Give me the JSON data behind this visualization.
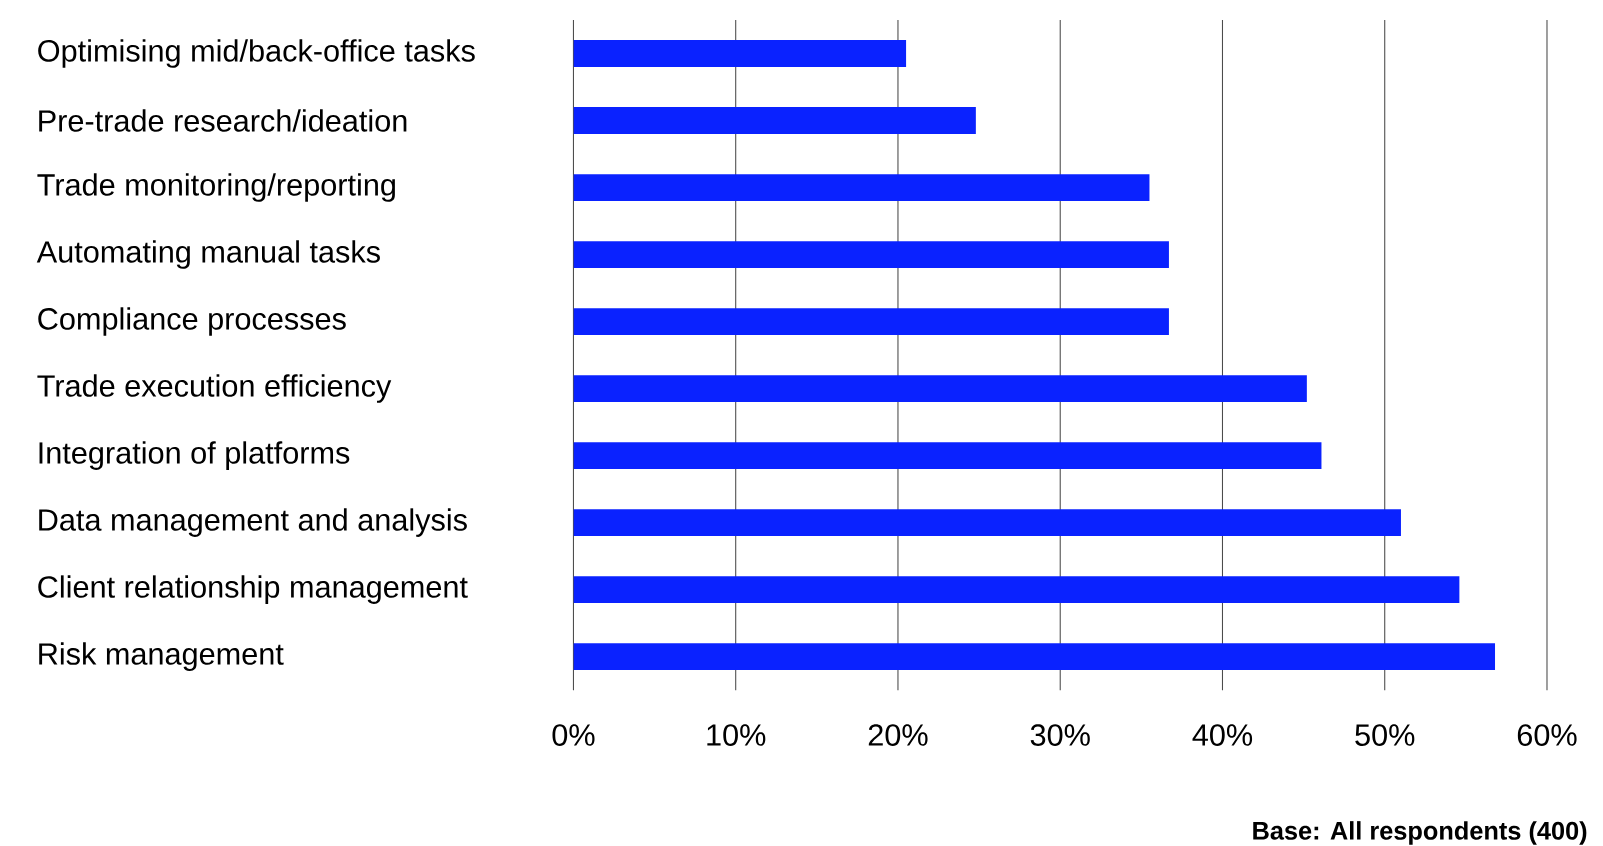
{
  "chart_data": {
    "type": "bar",
    "orientation": "horizontal",
    "categories": [
      "Optimising mid/back-office tasks",
      "Pre-trade research/ideation",
      "Trade monitoring/reporting",
      "Automating manual tasks",
      "Compliance processes",
      "Trade execution efficiency",
      "Integration of platforms",
      "Data management and analysis",
      "Client relationship management",
      "Risk management"
    ],
    "values": [
      20.5,
      24.8,
      35.5,
      36.7,
      36.7,
      45.2,
      46.1,
      51.0,
      54.6,
      56.8
    ],
    "color": "#0a22ff",
    "xlim": [
      0,
      60
    ],
    "xticks": [
      {
        "value": 0,
        "label": "0%"
      },
      {
        "value": 10,
        "label": "10%"
      },
      {
        "value": 20,
        "label": "20%"
      },
      {
        "value": 30,
        "label": "30%"
      },
      {
        "value": 40,
        "label": "40%"
      },
      {
        "value": 50,
        "label": "50%"
      },
      {
        "value": 60,
        "label": "60%"
      }
    ],
    "grid": "x",
    "annotations": [
      "Base: All respondents (400)"
    ]
  }
}
